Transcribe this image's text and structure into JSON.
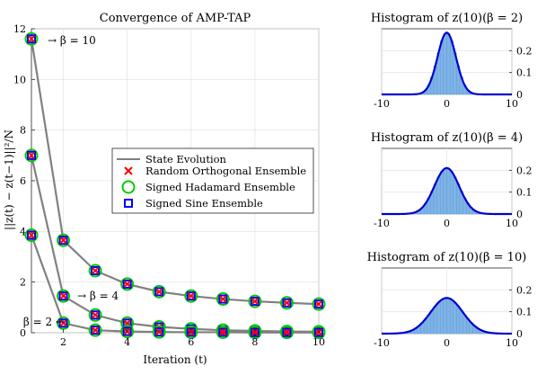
{
  "chart_data": [
    {
      "type": "line",
      "title": "Convergence of AMP-TAP",
      "xlabel": "Iteration (t)",
      "ylabel": "||z(t) − z(t−1)||²/N",
      "xlim": [
        1,
        10
      ],
      "ylim": [
        0,
        12
      ],
      "xticks": [
        "2",
        "4",
        "6",
        "8",
        "10"
      ],
      "yticks": [
        "0",
        "2",
        "4",
        "6",
        "8",
        "10",
        "12"
      ],
      "grid": true,
      "legend_position": "center-right",
      "legend": [
        {
          "label": "State Evolution",
          "marker": "line",
          "color": "#808080"
        },
        {
          "label": "Random Orthogonal Ensemble",
          "marker": "x",
          "color": "#ff0000"
        },
        {
          "label": "Signed Hadamard Ensemble",
          "marker": "circle",
          "color": "#00cc00"
        },
        {
          "label": "Signed Sine Ensemble",
          "marker": "square",
          "color": "#0000ff"
        }
      ],
      "x": [
        1,
        2,
        3,
        4,
        5,
        6,
        7,
        8,
        9,
        10
      ],
      "series": [
        {
          "values": [
            11.6,
            3.65,
            2.45,
            1.92,
            1.62,
            1.45,
            1.33,
            1.24,
            1.18,
            1.13
          ]
        },
        {
          "values": [
            7.0,
            1.45,
            0.7,
            0.38,
            0.23,
            0.15,
            0.1,
            0.07,
            0.05,
            0.04
          ]
        },
        {
          "values": [
            3.85,
            0.38,
            0.1,
            0.05,
            0.03,
            0.02,
            0.02,
            0.01,
            0.01,
            0.01
          ]
        }
      ],
      "annotations": [
        {
          "text": "→ β = 10",
          "x": 1,
          "y": 11.6
        },
        {
          "text": "→ β = 4",
          "x": 2,
          "y": 1.45
        },
        {
          "text": "β = 2 ←",
          "x": 2,
          "y": 0.38
        }
      ]
    },
    {
      "type": "bar",
      "title": "Histogram of z(10)(β = 2)",
      "xlim": [
        -10,
        10
      ],
      "ylim": [
        0,
        0.3
      ],
      "xticks": [
        "-10",
        "0",
        "10"
      ],
      "yticks": [
        "0",
        "0.1",
        "0.2"
      ],
      "sigma": 1.414,
      "peak": 0.282
    },
    {
      "type": "bar",
      "title": "Histogram of z(10)(β = 4)",
      "xlim": [
        -10,
        10
      ],
      "ylim": [
        0,
        0.3
      ],
      "xticks": [
        "-10",
        "0",
        "10"
      ],
      "yticks": [
        "0",
        "0.1",
        "0.2"
      ],
      "sigma": 1.9,
      "peak": 0.21
    },
    {
      "type": "bar",
      "title": "Histogram of z(10)(β = 10)",
      "xlim": [
        -10,
        10
      ],
      "ylim": [
        0,
        0.3
      ],
      "xticks": [
        "-10",
        "0",
        "10"
      ],
      "yticks": [
        "0",
        "0.1",
        "0.2"
      ],
      "sigma": 2.45,
      "peak": 0.163
    }
  ]
}
